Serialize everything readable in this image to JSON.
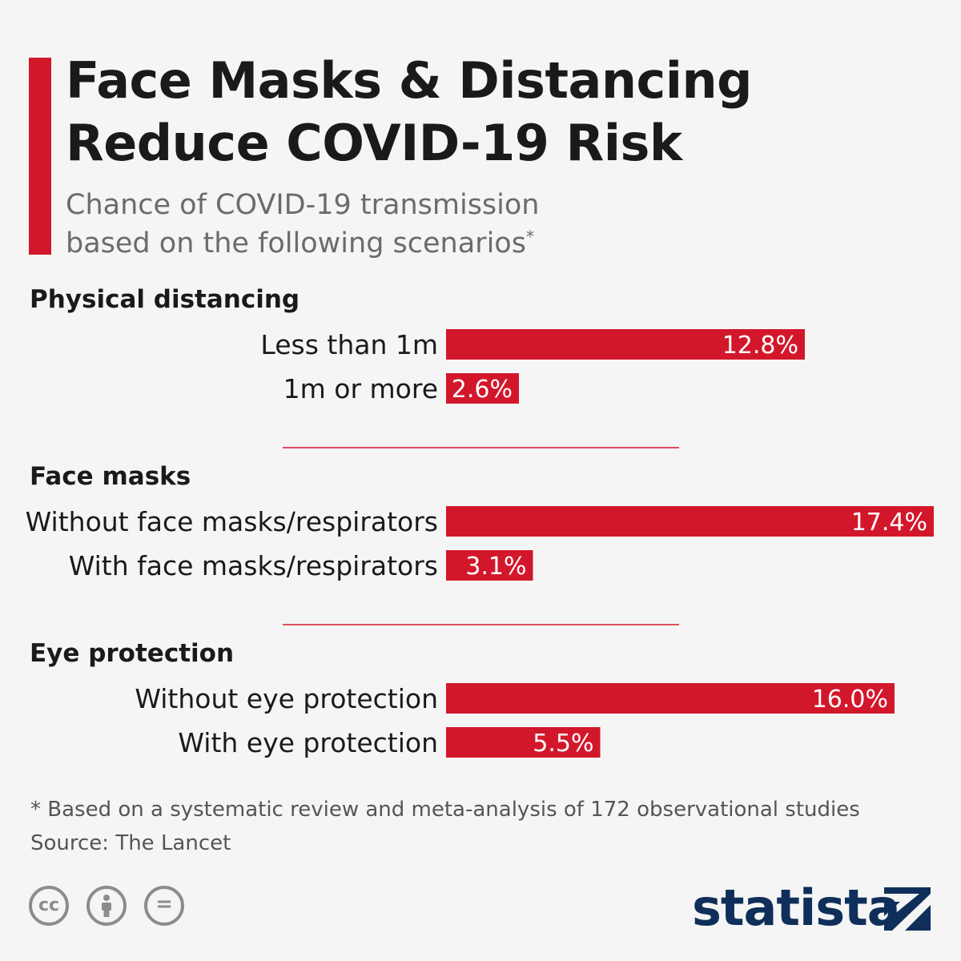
{
  "title_line1": "Face Masks & Distancing",
  "title_line2": "Reduce COVID-19 Risk",
  "subtitle_line1": "Chance of COVID-19 transmission",
  "subtitle_line2": "based on the following scenarios",
  "subtitle_marker": "*",
  "colors": {
    "accent": "#d3172b",
    "brand": "#0f2f5a"
  },
  "chart_data": {
    "type": "bar",
    "orientation": "horizontal",
    "unit": "%",
    "xlim": [
      0,
      17.4
    ],
    "groups": [
      {
        "name": "Physical distancing",
        "categories": [
          "Less than 1m",
          "1m or more"
        ],
        "values": [
          12.8,
          2.6
        ],
        "labels": [
          "12.8%",
          "2.6%"
        ]
      },
      {
        "name": "Face masks",
        "categories": [
          "Without face masks/respirators",
          "With face masks/respirators"
        ],
        "values": [
          17.4,
          3.1
        ],
        "labels": [
          "17.4%",
          "3.1%"
        ]
      },
      {
        "name": "Eye protection",
        "categories": [
          "Without eye protection",
          "With eye protection"
        ],
        "values": [
          16.0,
          5.5
        ],
        "labels": [
          "16.0%",
          "5.5%"
        ]
      }
    ]
  },
  "footnote": "* Based on a systematic review and meta-analysis of 172 observational studies",
  "source": "Source: The Lancet",
  "license_icons": [
    "cc-icon",
    "attribution-icon",
    "no-derivatives-icon"
  ],
  "license_marks": {
    "cc": "cc",
    "nd": "="
  },
  "logo_text": "statista",
  "logo_icon": "statista-logo-icon"
}
